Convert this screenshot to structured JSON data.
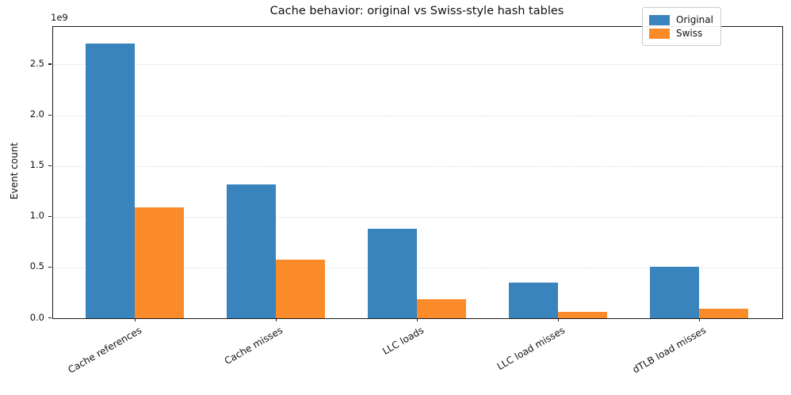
{
  "chart_data": {
    "type": "bar",
    "title": "Cache behavior: original vs Swiss-style hash tables",
    "xlabel": "",
    "ylabel": "Event count",
    "y_offset_text": "1e9",
    "categories": [
      "Cache references",
      "Cache misses",
      "LLC loads",
      "LLC load misses",
      "dTLB load misses"
    ],
    "series": [
      {
        "name": "Original",
        "color": "#3984bd",
        "values": [
          2710000000,
          1320000000,
          880000000,
          350000000,
          510000000
        ]
      },
      {
        "name": "Swiss",
        "color": "#fb8b28",
        "values": [
          1090000000,
          580000000,
          190000000,
          60000000,
          90000000
        ]
      }
    ],
    "ylim": [
      0,
      2870000000
    ],
    "yticks": [
      0,
      500000000,
      1000000000,
      1500000000,
      2000000000,
      2500000000
    ],
    "ytick_labels": [
      "0.0",
      "0.5",
      "1.0",
      "1.5",
      "2.0",
      "2.5"
    ],
    "grid": "horizontal dashed, light gray",
    "grid_color": "#e4e4e4",
    "legend_position": "upper right",
    "xtick_rotation": 30,
    "background_color": "#ffffff",
    "spine_color": "#1a1a1a"
  }
}
